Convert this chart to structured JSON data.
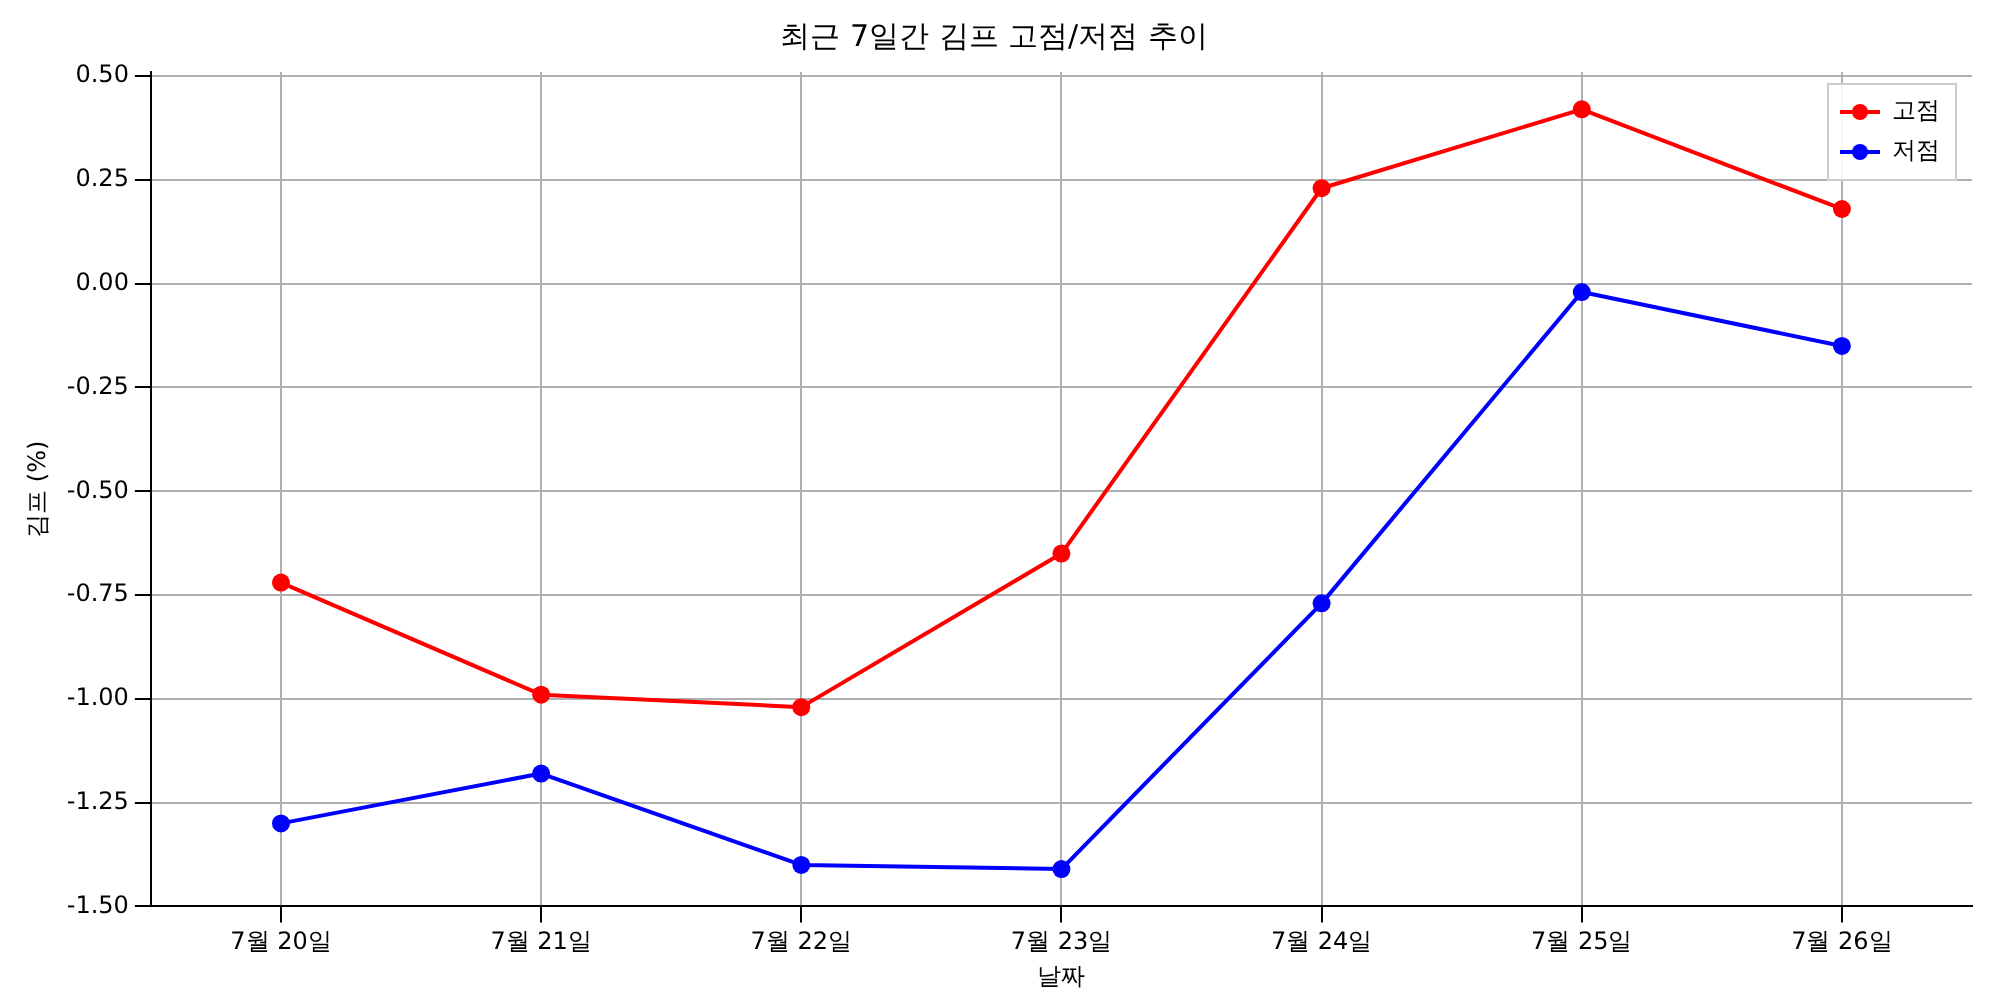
{
  "chart_data": {
    "type": "line",
    "title": "최근 7일간 김프 고점/저점 추이",
    "xlabel": "날짜",
    "ylabel": "김프 (%)",
    "categories": [
      "7월 20일",
      "7월 21일",
      "7월 22일",
      "7월 23일",
      "7월 24일",
      "7월 25일",
      "7월 26일"
    ],
    "series": [
      {
        "name": "고점",
        "color": "#ff0000",
        "values": [
          -0.72,
          -0.99,
          -1.02,
          -0.65,
          0.23,
          0.42,
          0.18
        ]
      },
      {
        "name": "저점",
        "color": "#0000ff",
        "values": [
          -1.3,
          -1.18,
          -1.4,
          -1.41,
          -0.77,
          -0.02,
          -0.15
        ]
      }
    ],
    "ylim": [
      -1.5,
      0.51
    ],
    "yticks": [
      {
        "value": -1.5,
        "label": "-1.50"
      },
      {
        "value": -1.25,
        "label": "-1.25"
      },
      {
        "value": -1,
        "label": "-1.00"
      },
      {
        "value": -0.75,
        "label": "-0.75"
      },
      {
        "value": -0.5,
        "label": "-0.50"
      },
      {
        "value": -0.25,
        "label": "-0.25"
      },
      {
        "value": 0,
        "label": "0.00"
      },
      {
        "value": 0.25,
        "label": "0.25"
      },
      {
        "value": 0.5,
        "label": "0.50"
      }
    ],
    "grid": true,
    "legend": "top right",
    "marker": "circle",
    "line_style": "solid"
  }
}
